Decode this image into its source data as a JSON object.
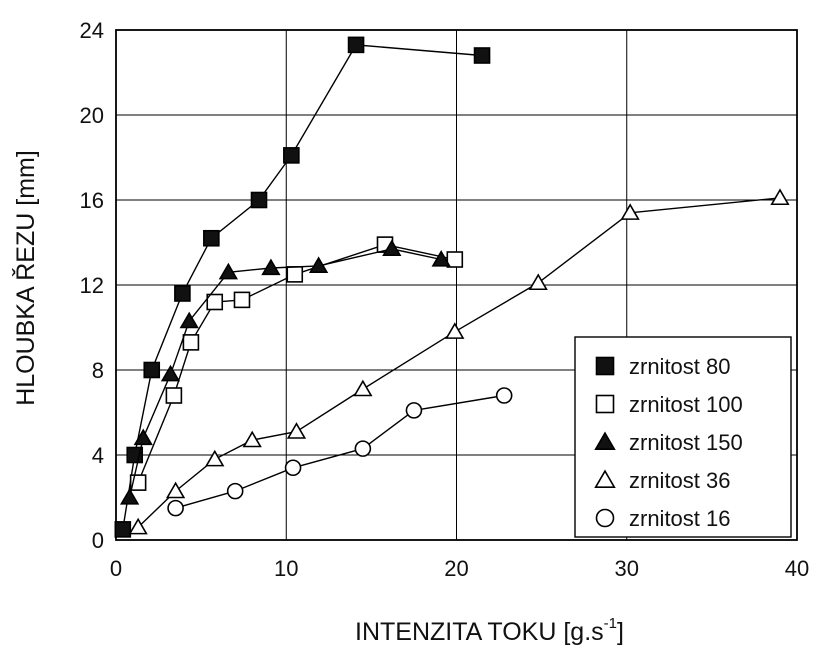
{
  "chart_data": {
    "type": "scatter",
    "xlabel": "INTENZITA TOKU  [g.s",
    "xlabel_sup": "-1",
    "xlabel_end": "]",
    "ylabel": "HLOUBKA ŘEZU [mm]",
    "xlim": [
      0,
      40
    ],
    "ylim": [
      0,
      24
    ],
    "x_ticks": [
      0,
      10,
      20,
      30,
      40
    ],
    "y_ticks": [
      0,
      4,
      8,
      12,
      16,
      20,
      24
    ],
    "grid": true,
    "lines_connect_points": true,
    "legend_position": "right",
    "series": [
      {
        "name": "zrnitost 80",
        "marker": "filled-square",
        "points": [
          [
            0.4,
            0.5
          ],
          [
            1.1,
            4.0
          ],
          [
            2.1,
            8.0
          ],
          [
            3.9,
            11.6
          ],
          [
            5.6,
            14.2
          ],
          [
            8.4,
            16.0
          ],
          [
            10.3,
            18.1
          ],
          [
            14.1,
            23.3
          ],
          [
            21.5,
            22.8
          ]
        ]
      },
      {
        "name": "zrnitost 100",
        "marker": "open-square",
        "points": [
          [
            1.3,
            2.7
          ],
          [
            3.4,
            6.8
          ],
          [
            4.4,
            9.3
          ],
          [
            5.8,
            11.2
          ],
          [
            7.4,
            11.3
          ],
          [
            10.5,
            12.5
          ],
          [
            15.8,
            13.9
          ],
          [
            19.9,
            13.2
          ]
        ]
      },
      {
        "name": "zrnitost 150",
        "marker": "filled-triangle",
        "points": [
          [
            0.8,
            2.0
          ],
          [
            1.6,
            4.8
          ],
          [
            3.2,
            7.8
          ],
          [
            4.3,
            10.3
          ],
          [
            6.6,
            12.6
          ],
          [
            9.1,
            12.8
          ],
          [
            11.9,
            12.9
          ],
          [
            16.2,
            13.7
          ],
          [
            19.1,
            13.2
          ]
        ]
      },
      {
        "name": "zrnitost 36",
        "marker": "open-triangle",
        "points": [
          [
            1.3,
            0.6
          ],
          [
            3.5,
            2.3
          ],
          [
            5.8,
            3.8
          ],
          [
            8.0,
            4.7
          ],
          [
            10.6,
            5.1
          ],
          [
            14.5,
            7.1
          ],
          [
            19.9,
            9.8
          ],
          [
            24.8,
            12.1
          ],
          [
            30.2,
            15.4
          ],
          [
            39.0,
            16.1
          ]
        ]
      },
      {
        "name": "zrnitost 16",
        "marker": "open-circle",
        "points": [
          [
            3.5,
            1.5
          ],
          [
            7.0,
            2.3
          ],
          [
            10.4,
            3.4
          ],
          [
            14.5,
            4.3
          ],
          [
            17.5,
            6.1
          ],
          [
            22.8,
            6.8
          ]
        ]
      }
    ]
  }
}
